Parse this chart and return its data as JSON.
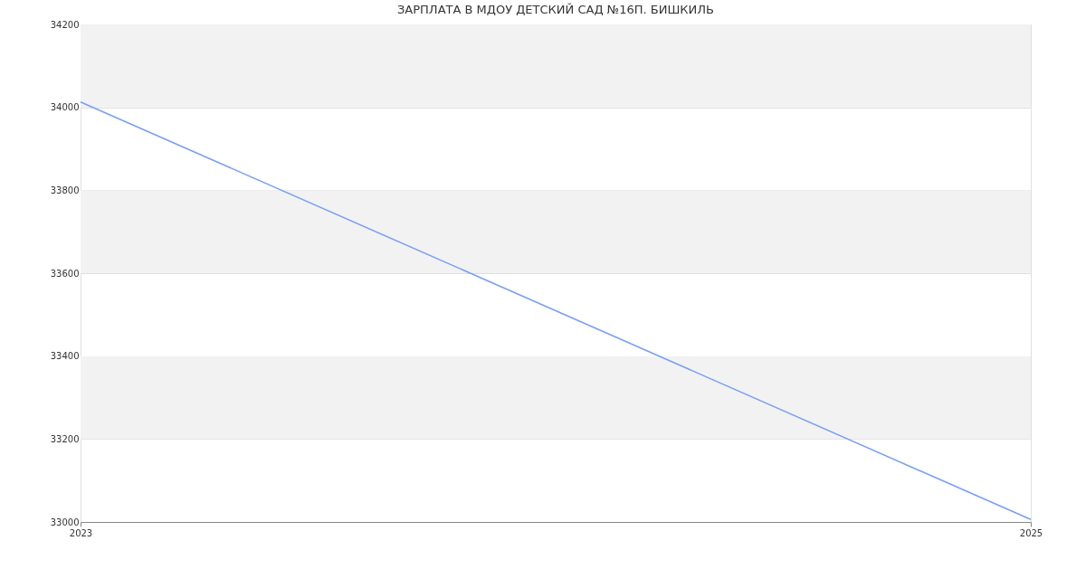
{
  "chart_data": {
    "type": "line",
    "title": "ЗАРПЛАТА В МДОУ ДЕТСКИЙ САД №16П. БИШКИЛЬ",
    "x": [
      2023,
      2025
    ],
    "series": [
      {
        "color": "#779ef5",
        "values": [
          34013,
          33006
        ]
      }
    ],
    "xlim": [
      2023,
      2025
    ],
    "xticks": [
      2023,
      2025
    ],
    "ylim": [
      33000,
      34200
    ],
    "yticks": [
      33000,
      33200,
      33400,
      33600,
      33800,
      34000,
      34200
    ],
    "bands": [
      {
        "axis": "y",
        "from": 34000,
        "to": 34200,
        "color": "#f2f2f2"
      },
      {
        "axis": "y",
        "from": 33600,
        "to": 33800,
        "color": "#f2f2f2"
      },
      {
        "axis": "y",
        "from": 33200,
        "to": 33400,
        "color": "#f2f2f2"
      }
    ],
    "grid": "y",
    "marker": "none",
    "line_style": "solid"
  }
}
